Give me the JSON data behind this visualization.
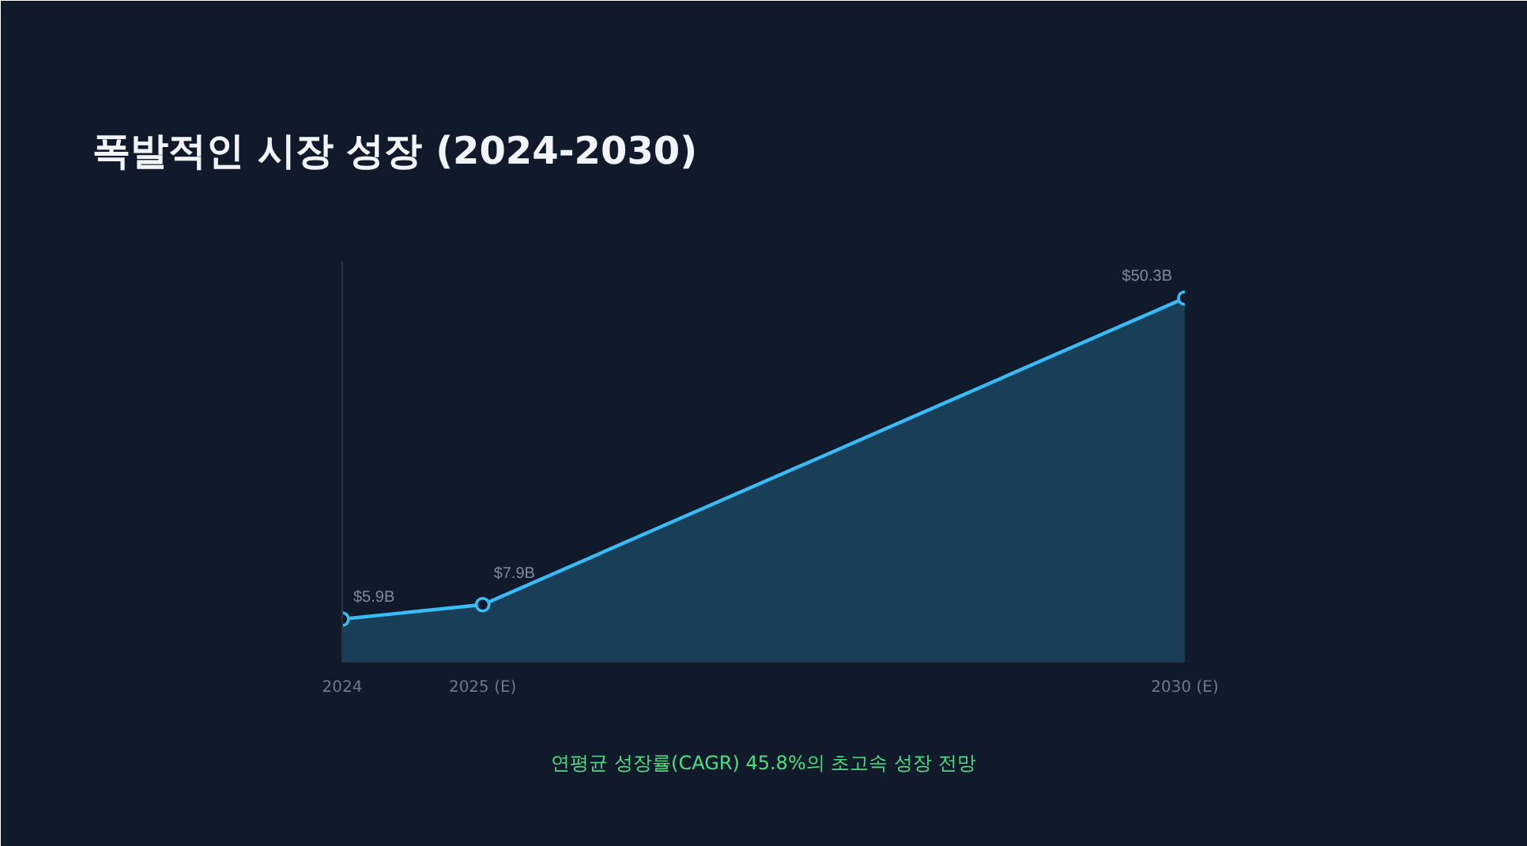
{
  "chart_data": {
    "type": "area",
    "title": "폭발적인 시장 성장 (2024-2030)",
    "x": [
      2024,
      2025,
      2030
    ],
    "series": [
      {
        "color": "#38bdf8",
        "values": [
          5.9,
          7.9,
          50.3
        ],
        "value_labels": [
          "$5.9B",
          "$7.9B",
          "$50.3B"
        ]
      }
    ],
    "xlim": [
      2024,
      2030
    ],
    "xticks": [
      {
        "value": 2024,
        "label": "2024"
      },
      {
        "value": 2025,
        "label": "2025 (E)"
      },
      {
        "value": 2030,
        "label": "2030 (E)"
      }
    ],
    "tick_labels": "x",
    "grid": false,
    "marker": "circle",
    "annotations": [
      "연평균 성장률(CAGR) 45.8%의 초고속 성장 전망"
    ]
  }
}
